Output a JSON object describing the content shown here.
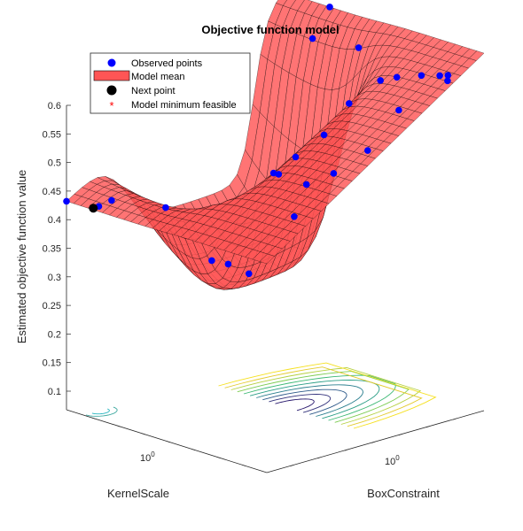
{
  "chart_data": {
    "type": "surface",
    "title": "Objective function model",
    "xlabel": "BoxConstraint",
    "ylabel": "KernelScale",
    "zlabel": "Estimated objective function value",
    "x_scale": "log",
    "y_scale": "log",
    "x_ticks": [
      {
        "value": 1,
        "label": "10",
        "exp": "0"
      }
    ],
    "y_ticks": [
      {
        "value": 1,
        "label": "10",
        "exp": "0"
      }
    ],
    "zlim": [
      0.08,
      0.62
    ],
    "z_ticks": [
      0.1,
      0.15,
      0.2,
      0.25,
      0.3,
      0.35,
      0.4,
      0.45,
      0.5,
      0.55,
      0.6
    ],
    "legend": {
      "placement": "top-left",
      "entries": [
        {
          "key": "observed",
          "label": "Observed points",
          "marker": "dot",
          "color": "#0000ff"
        },
        {
          "key": "mean",
          "label": "Model mean",
          "marker": "patch",
          "color": "#ff5555"
        },
        {
          "key": "next",
          "label": "Next point",
          "marker": "dot",
          "color": "#000000"
        },
        {
          "key": "minfeas",
          "label": "Model minimum feasible",
          "marker": "star",
          "color": "#ff0000"
        }
      ]
    },
    "surface_color": "#ff5555",
    "observed_color": "#0000ff",
    "next_point_color": "#000000"
  }
}
